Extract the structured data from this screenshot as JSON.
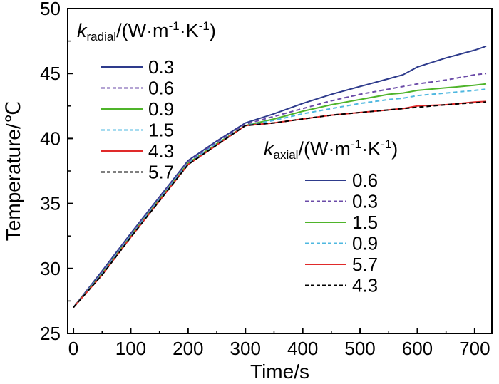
{
  "chart_data": {
    "type": "line",
    "xlabel": "Time/s",
    "ylabel": "Temperature/℃",
    "xlim": [
      -10,
      730
    ],
    "ylim": [
      25,
      50
    ],
    "xticks": [
      0,
      100,
      200,
      300,
      400,
      500,
      600,
      700
    ],
    "yticks": [
      25,
      30,
      35,
      40,
      45,
      50
    ],
    "x": [
      0,
      50,
      100,
      150,
      200,
      250,
      300,
      350,
      400,
      450,
      500,
      550,
      575,
      600,
      650,
      700,
      720
    ],
    "colors": {
      "navy": "#2e3b8c",
      "purple": "#6b4ba8",
      "green": "#4fb42a",
      "cyan": "#4fb8e0",
      "red": "#e02a2a",
      "black": "#000000"
    },
    "legends": [
      {
        "title_main": "k",
        "title_sub": "radial",
        "title_unit": "/(W·m",
        "title_exp1": "-1",
        "title_mid": "·K",
        "title_exp2": "-1",
        "title_end": ")",
        "position": "top-left",
        "entries": [
          {
            "label": "0.3",
            "color": "navy",
            "dash": "solid"
          },
          {
            "label": "0.6",
            "color": "purple",
            "dash": "dashed"
          },
          {
            "label": "0.9",
            "color": "green",
            "dash": "solid"
          },
          {
            "label": "1.5",
            "color": "cyan",
            "dash": "dashed"
          },
          {
            "label": "4.3",
            "color": "red",
            "dash": "solid"
          },
          {
            "label": "5.7",
            "color": "black",
            "dash": "dashed"
          }
        ]
      },
      {
        "title_main": "k",
        "title_sub": "axial",
        "title_unit": "/(W·m",
        "title_exp1": "-1",
        "title_mid": "·K",
        "title_exp2": "-1",
        "title_end": ")",
        "position": "center-right",
        "entries": [
          {
            "label": "0.6",
            "color": "navy",
            "dash": "solid"
          },
          {
            "label": "0.3",
            "color": "purple",
            "dash": "dashed"
          },
          {
            "label": "1.5",
            "color": "green",
            "dash": "solid"
          },
          {
            "label": "0.9",
            "color": "cyan",
            "dash": "dashed"
          },
          {
            "label": "5.7",
            "color": "red",
            "dash": "solid"
          },
          {
            "label": "4.3",
            "color": "black",
            "dash": "dashed"
          }
        ]
      }
    ],
    "series": [
      {
        "color": "navy",
        "dash": "solid",
        "y": [
          27.0,
          29.8,
          32.7,
          35.5,
          38.3,
          39.8,
          41.2,
          41.9,
          42.7,
          43.4,
          44.0,
          44.6,
          44.9,
          45.5,
          46.2,
          46.8,
          47.1
        ]
      },
      {
        "color": "purple",
        "dash": "dashed",
        "y": [
          27.0,
          29.7,
          32.6,
          35.4,
          38.2,
          39.7,
          41.1,
          41.7,
          42.3,
          42.9,
          43.4,
          43.8,
          44.0,
          44.2,
          44.5,
          44.9,
          45.0
        ]
      },
      {
        "color": "green",
        "dash": "solid",
        "y": [
          27.0,
          29.6,
          32.5,
          35.3,
          38.1,
          39.6,
          41.0,
          41.5,
          42.1,
          42.6,
          43.0,
          43.4,
          43.5,
          43.7,
          43.9,
          44.1,
          44.2
        ]
      },
      {
        "color": "cyan",
        "dash": "dashed",
        "y": [
          27.0,
          29.6,
          32.5,
          35.3,
          38.1,
          39.6,
          41.0,
          41.4,
          41.9,
          42.3,
          42.7,
          43.0,
          43.1,
          43.3,
          43.5,
          43.7,
          43.8
        ]
      },
      {
        "color": "red",
        "dash": "solid",
        "y": [
          27.0,
          29.5,
          32.4,
          35.2,
          38.0,
          39.5,
          41.0,
          41.2,
          41.5,
          41.8,
          42.0,
          42.2,
          42.3,
          42.5,
          42.6,
          42.8,
          42.85
        ]
      },
      {
        "color": "black",
        "dash": "dashed",
        "y": [
          27.0,
          29.5,
          32.4,
          35.2,
          38.0,
          39.5,
          41.0,
          41.2,
          41.5,
          41.8,
          42.0,
          42.2,
          42.3,
          42.4,
          42.6,
          42.75,
          42.8
        ]
      }
    ]
  }
}
